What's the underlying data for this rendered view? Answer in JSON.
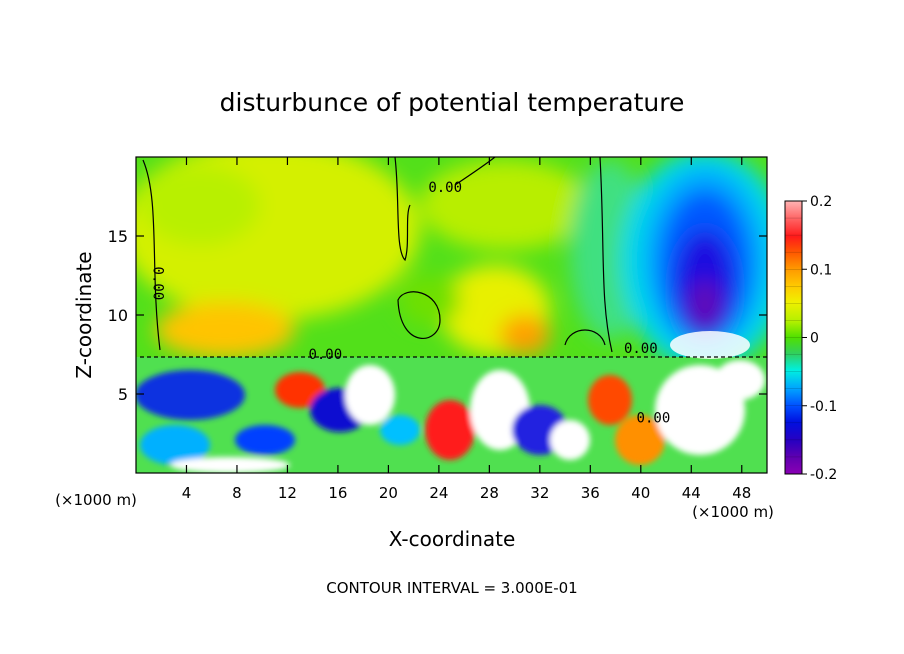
{
  "chart_data": {
    "type": "heatmap",
    "title": "disturbunce of potential temperature",
    "xlabel": "X-coordinate",
    "ylabel": "Z-coordinate",
    "x_unit": "(×1000 m)",
    "z_unit": "(×1000 m)",
    "xlim": [
      0,
      50
    ],
    "ylim": [
      0,
      20
    ],
    "x_ticks": [
      4,
      8,
      12,
      16,
      20,
      24,
      28,
      32,
      36,
      40,
      44,
      48
    ],
    "y_ticks": [
      5,
      10,
      15
    ],
    "colorbar": {
      "ticks": [
        0.2,
        0.1,
        0,
        -0.1,
        -0.2
      ],
      "range": [
        -0.2,
        0.2
      ],
      "levels": 16
    },
    "contour_labels": [
      {
        "x": 24.5,
        "z": 17.8,
        "text": "0.00"
      },
      {
        "x": 1.4,
        "z": 12.0,
        "text": "0.00"
      },
      {
        "x": 15.0,
        "z": 7.2,
        "text": "0.00"
      },
      {
        "x": 40.0,
        "z": 7.6,
        "text": "0.00"
      },
      {
        "x": 41.0,
        "z": 3.2,
        "text": "0.00"
      }
    ],
    "footer": "CONTOUR INTERVAL = 3.000E-01",
    "grid": false,
    "legend_position": "right"
  }
}
